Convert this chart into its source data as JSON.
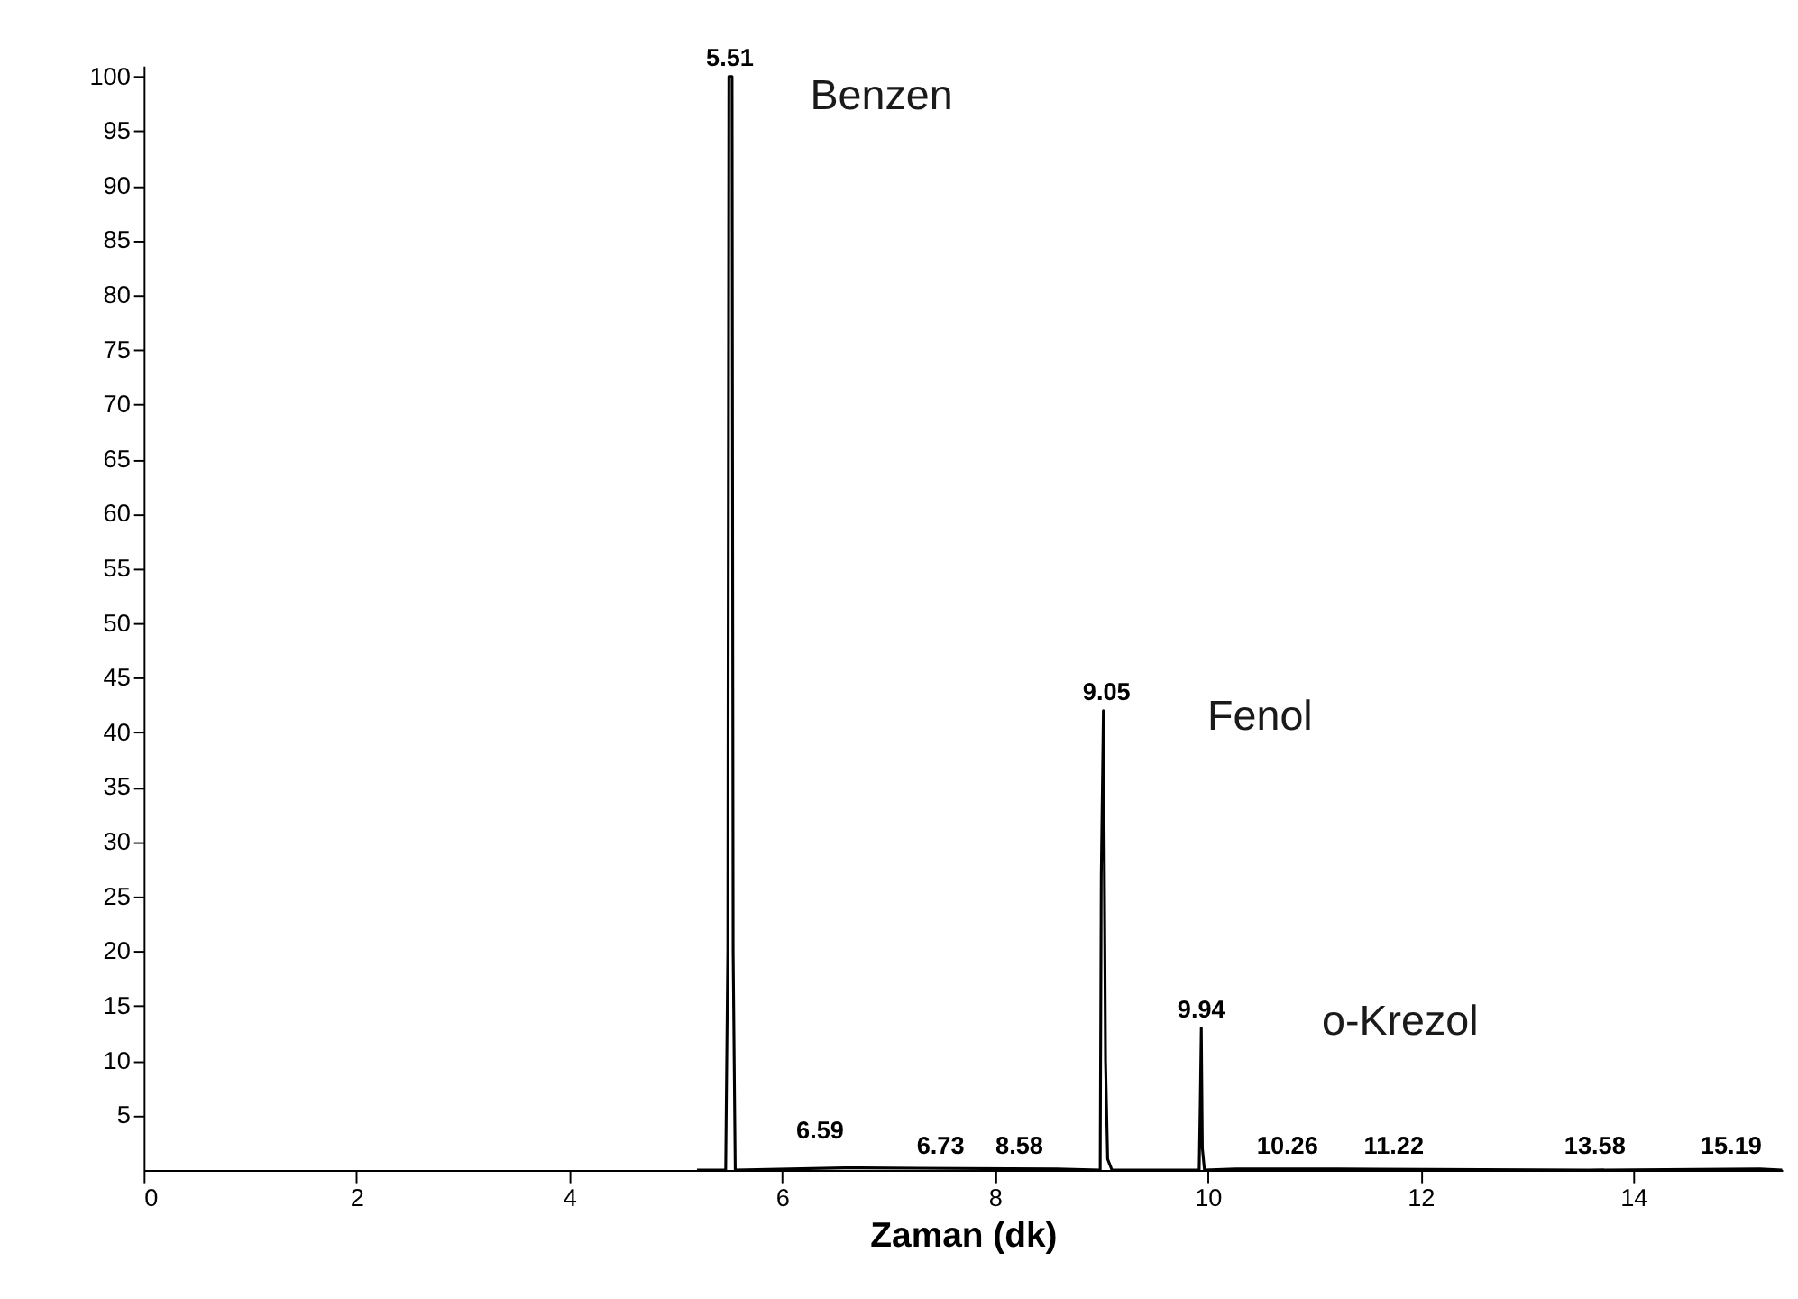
{
  "chart_data": {
    "type": "line",
    "xlabel": "Zaman (dk)",
    "xlim": [
      0,
      15.4
    ],
    "xticks": [
      0,
      2,
      4,
      6,
      8,
      10,
      12,
      14
    ],
    "ylim": [
      0,
      101
    ],
    "yticks": [
      5,
      10,
      15,
      20,
      25,
      30,
      35,
      40,
      45,
      50,
      55,
      60,
      65,
      70,
      75,
      80,
      85,
      90,
      95,
      100
    ],
    "grid": false,
    "marker": "none",
    "line_style": "solid",
    "series": [
      {
        "color": "#000000",
        "x": [
          5.2,
          5.47,
          5.49,
          5.5,
          5.53,
          5.54,
          5.56,
          6.59,
          6.73,
          8.58,
          8.99,
          9.0,
          9.02,
          9.04,
          9.06,
          9.1,
          9.92,
          9.93,
          9.94,
          9.95,
          9.97,
          10.26,
          11.22,
          13.58,
          15.19,
          15.4
        ],
        "values": [
          0,
          0,
          20,
          100,
          100,
          20,
          0,
          0.2,
          0.2,
          0.1,
          0,
          27,
          42,
          10,
          1,
          0,
          0,
          6,
          13,
          2,
          0,
          0.1,
          0.1,
          0,
          0.1,
          0
        ]
      }
    ],
    "annotations": [
      {
        "text": "5.51",
        "x": 5.51,
        "y": 100
      },
      {
        "text": "9.05",
        "x": 9.05,
        "y": 42
      },
      {
        "text": "9.94",
        "x": 9.94,
        "y": 13
      },
      {
        "text": "6.73",
        "x": 7.49,
        "y": 0.5
      },
      {
        "text": "8.58",
        "x": 8.23,
        "y": 0.5
      },
      {
        "text": "10.26",
        "x": 10.75,
        "y": 0.5
      },
      {
        "text": "11.22",
        "x": 11.75,
        "y": 0.5
      },
      {
        "text": "13.58",
        "x": 13.64,
        "y": 0.5
      },
      {
        "text": "15.19",
        "x": 14.92,
        "y": 0.5
      },
      "6.59",
      "Benzen",
      "Fenol",
      "o-Krezol"
    ]
  }
}
